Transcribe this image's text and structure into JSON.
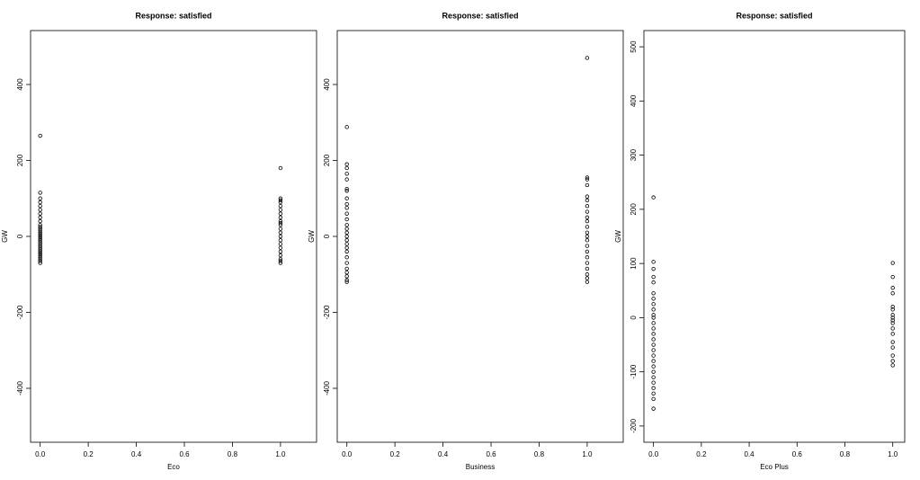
{
  "chart_data": [
    {
      "type": "scatter",
      "title": "Response: satisfied",
      "xlabel": "Eco",
      "ylabel": "GW",
      "color": "#000000",
      "xlim": [
        -0.04,
        1.15
      ],
      "ylim": [
        -542,
        542
      ],
      "xticks": [
        {
          "value": 0,
          "label": "0.0"
        },
        0.2,
        0.4,
        0.6,
        0.8,
        {
          "value": 1,
          "label": "1.0"
        }
      ],
      "yticks": [
        -400,
        -200,
        0,
        200,
        400
      ],
      "x": [
        0,
        0,
        0,
        0,
        0,
        0,
        0,
        0,
        0,
        0,
        0,
        0,
        0,
        0,
        0,
        0,
        0,
        0,
        0,
        0,
        0,
        0,
        0,
        0,
        0,
        0,
        0,
        0,
        0,
        0,
        1,
        1,
        1,
        1,
        1,
        1,
        1,
        1,
        1,
        1,
        1,
        1,
        1,
        1,
        1,
        1,
        1,
        1,
        1,
        1,
        1,
        1
      ],
      "values": [
        265,
        115,
        100,
        90,
        80,
        70,
        60,
        50,
        40,
        30,
        25,
        20,
        15,
        10,
        5,
        0,
        -5,
        -10,
        -15,
        -20,
        -25,
        -30,
        -35,
        -40,
        -45,
        -50,
        -55,
        -60,
        -65,
        -70,
        180,
        100,
        95,
        90,
        80,
        70,
        60,
        50,
        40,
        35,
        30,
        20,
        10,
        0,
        -10,
        -20,
        -30,
        -40,
        -50,
        -60,
        -65,
        -70
      ]
    },
    {
      "type": "scatter",
      "title": "Response: satisfied",
      "xlabel": "Business",
      "ylabel": "GW",
      "color": "#000000",
      "xlim": [
        -0.04,
        1.15
      ],
      "ylim": [
        -542,
        542
      ],
      "xticks": [
        {
          "value": 0,
          "label": "0.0"
        },
        0.2,
        0.4,
        0.6,
        0.8,
        {
          "value": 1,
          "label": "1.0"
        }
      ],
      "yticks": [
        -400,
        -200,
        0,
        200,
        400
      ],
      "x": [
        0,
        0,
        0,
        0,
        0,
        0,
        0,
        0,
        0,
        0,
        0,
        0,
        0,
        0,
        0,
        0,
        0,
        0,
        0,
        0,
        0,
        0,
        0,
        0,
        0,
        0,
        0,
        1,
        1,
        1,
        1,
        1,
        1,
        1,
        1,
        1,
        1,
        1,
        1,
        1,
        1,
        1,
        1,
        1,
        1,
        1,
        1,
        1,
        1
      ],
      "values": [
        288,
        190,
        180,
        165,
        150,
        125,
        120,
        100,
        85,
        75,
        60,
        45,
        30,
        20,
        10,
        0,
        -10,
        -20,
        -30,
        -40,
        -55,
        -70,
        -85,
        -95,
        -105,
        -115,
        -120,
        470,
        155,
        150,
        135,
        105,
        95,
        80,
        65,
        50,
        40,
        25,
        10,
        0,
        -10,
        -25,
        -40,
        -55,
        -70,
        -85,
        -100,
        -110,
        -120
      ]
    },
    {
      "type": "scatter",
      "title": "Response: satisfied",
      "xlabel": "Eco Plus",
      "ylabel": "GW",
      "color": "#000000",
      "xlim": [
        -0.04,
        1.05
      ],
      "ylim": [
        -230,
        530
      ],
      "xticks": [
        {
          "value": 0,
          "label": "0.0"
        },
        0.2,
        0.4,
        0.6,
        0.8,
        {
          "value": 1,
          "label": "1.0"
        }
      ],
      "yticks": [
        -200,
        -100,
        0,
        100,
        200,
        300,
        400,
        500
      ],
      "x": [
        0,
        0,
        0,
        0,
        0,
        0,
        0,
        0,
        0,
        0,
        0,
        0,
        0,
        0,
        0,
        0,
        0,
        0,
        0,
        0,
        0,
        0,
        0,
        0,
        0,
        0,
        0,
        1,
        1,
        1,
        1,
        1,
        1,
        1,
        1,
        1,
        1,
        1,
        1,
        1,
        1,
        1,
        1,
        1
      ],
      "values": [
        222,
        103,
        90,
        75,
        65,
        45,
        35,
        25,
        15,
        5,
        0,
        -10,
        -20,
        -30,
        -40,
        -50,
        -60,
        -70,
        -80,
        -90,
        -100,
        -110,
        -120,
        -130,
        -140,
        -150,
        -168,
        101,
        75,
        55,
        45,
        20,
        15,
        5,
        0,
        -5,
        -10,
        -20,
        -30,
        -45,
        -55,
        -70,
        -80,
        -88
      ]
    }
  ]
}
